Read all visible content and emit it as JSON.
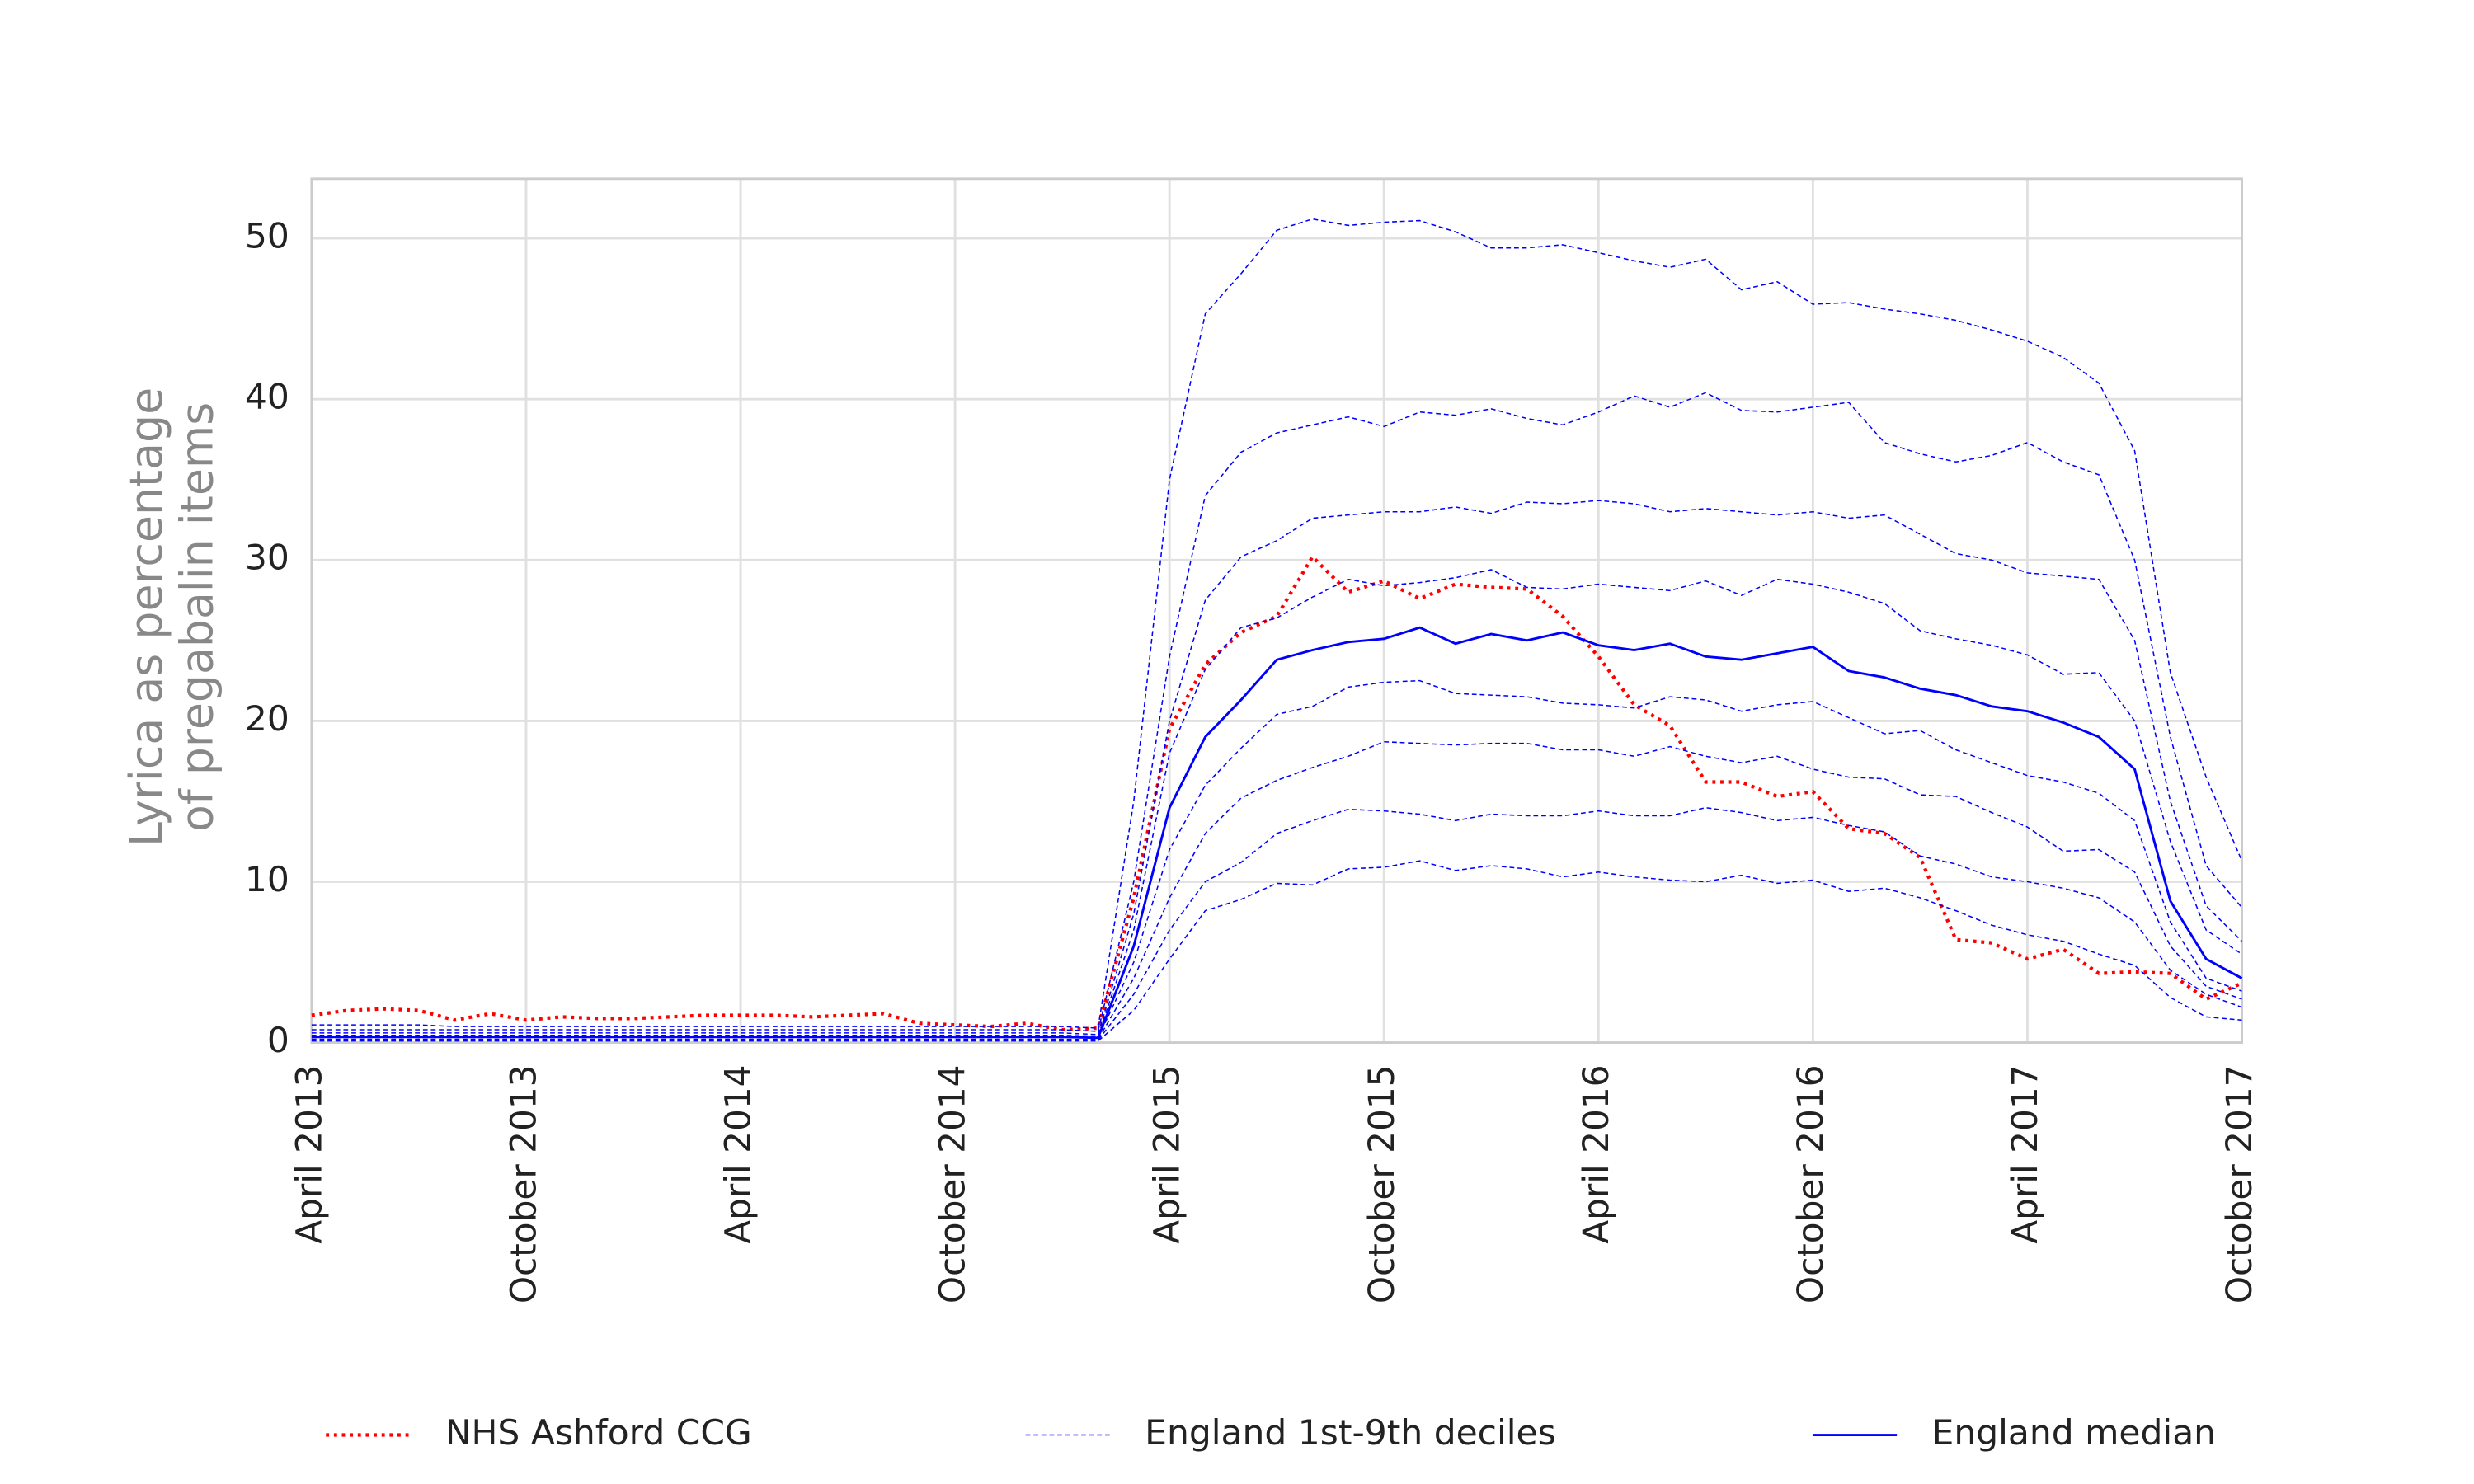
{
  "chart_data": {
    "type": "line",
    "y_label": [
      "Lyrica as percentage",
      "of pregabalin items"
    ],
    "x": [
      "2013-04",
      "2013-05",
      "2013-06",
      "2013-07",
      "2013-08",
      "2013-09",
      "2013-10",
      "2013-11",
      "2013-12",
      "2014-01",
      "2014-02",
      "2014-03",
      "2014-04",
      "2014-05",
      "2014-06",
      "2014-07",
      "2014-08",
      "2014-09",
      "2014-10",
      "2014-11",
      "2014-12",
      "2015-01",
      "2015-02",
      "2015-03",
      "2015-04",
      "2015-05",
      "2015-06",
      "2015-07",
      "2015-08",
      "2015-09",
      "2015-10",
      "2015-11",
      "2015-12",
      "2016-01",
      "2016-02",
      "2016-03",
      "2016-04",
      "2016-05",
      "2016-06",
      "2016-07",
      "2016-08",
      "2016-09",
      "2016-10",
      "2016-11",
      "2016-12",
      "2017-01",
      "2017-02",
      "2017-03",
      "2017-04",
      "2017-05",
      "2017-06",
      "2017-07",
      "2017-08",
      "2017-09",
      "2017-10"
    ],
    "xlim": [
      "2013-04",
      "2017-10"
    ],
    "xticks": [
      {
        "value": "2013-04",
        "label": "April 2013"
      },
      {
        "value": "2013-10",
        "label": "October 2013"
      },
      {
        "value": "2014-04",
        "label": "April 2014"
      },
      {
        "value": "2014-10",
        "label": "October 2014"
      },
      {
        "value": "2015-04",
        "label": "April 2015"
      },
      {
        "value": "2015-10",
        "label": "October 2015"
      },
      {
        "value": "2016-04",
        "label": "April 2016"
      },
      {
        "value": "2016-10",
        "label": "October 2016"
      },
      {
        "value": "2017-04",
        "label": "April 2017"
      },
      {
        "value": "2017-10",
        "label": "October 2017"
      }
    ],
    "ylim": [
      0,
      53.7
    ],
    "yticks": [
      0,
      10,
      20,
      30,
      40,
      50
    ],
    "grid": true,
    "series": [
      {
        "name": "NHS Ashford CCG",
        "color": "#ff0000",
        "linestyle": "dotted",
        "values": [
          1.7,
          2.0,
          2.1,
          2.0,
          1.4,
          1.8,
          1.4,
          1.6,
          1.5,
          1.5,
          1.6,
          1.7,
          1.7,
          1.7,
          1.6,
          1.7,
          1.8,
          1.2,
          1.1,
          1.0,
          1.2,
          0.8,
          0.9,
          9,
          19.5,
          23.5,
          25.5,
          26.5,
          30.2,
          28,
          28.7,
          27.6,
          28.5,
          28.3,
          28.2,
          26.5,
          24,
          21,
          19.7,
          16.2,
          16.2,
          15.3,
          15.6,
          13.3,
          13,
          11.5,
          6.4,
          6.2,
          5.2,
          5.8,
          4.3,
          4.4,
          4.3,
          2.7,
          3.7
        ]
      },
      {
        "name": "England 1st-9th deciles",
        "color": "#0000ff",
        "linestyle": "dashed",
        "values": [
          [
            0.1,
            0.1,
            0.1,
            0.1,
            0.1,
            0.1,
            0.1,
            0.1,
            0.1,
            0.1,
            0.1,
            0.1,
            0.1,
            0.1,
            0.1,
            0.1,
            0.1,
            0.1,
            0.1,
            0.1,
            0.1,
            0.1,
            0.1,
            2,
            5.2,
            8.2,
            8.9,
            9.9,
            9.8,
            10.8,
            10.9,
            11.3,
            10.7,
            11,
            10.8,
            10.3,
            10.6,
            10.3,
            10.1,
            10,
            10.4,
            9.9,
            10.1,
            9.4,
            9.6,
            9,
            8.2,
            7.3,
            6.7,
            6.3,
            5.5,
            4.8,
            2.8,
            1.6,
            1.4
          ],
          [
            0.15,
            0.15,
            0.15,
            0.15,
            0.15,
            0.15,
            0.15,
            0.15,
            0.15,
            0.15,
            0.15,
            0.15,
            0.15,
            0.15,
            0.15,
            0.15,
            0.15,
            0.15,
            0.15,
            0.15,
            0.15,
            0.15,
            0.15,
            3,
            7,
            10,
            11.2,
            13,
            13.8,
            14.5,
            14.4,
            14.2,
            13.8,
            14.2,
            14.1,
            14.1,
            14.4,
            14.1,
            14.1,
            14.6,
            14.3,
            13.8,
            14,
            13.5,
            13.1,
            11.6,
            11.1,
            10.3,
            10,
            9.6,
            9,
            7.5,
            4.5,
            3,
            2.2
          ],
          [
            0.2,
            0.2,
            0.2,
            0.2,
            0.2,
            0.2,
            0.2,
            0.2,
            0.2,
            0.2,
            0.2,
            0.2,
            0.2,
            0.2,
            0.2,
            0.2,
            0.2,
            0.2,
            0.2,
            0.2,
            0.2,
            0.2,
            0.2,
            4,
            9,
            13,
            15.2,
            16.3,
            17.1,
            17.8,
            18.7,
            18.6,
            18.5,
            18.6,
            18.6,
            18.2,
            18.2,
            17.8,
            18.4,
            17.8,
            17.4,
            17.8,
            17,
            16.5,
            16.4,
            15.4,
            15.3,
            14.3,
            13.4,
            11.9,
            12,
            10.6,
            6,
            3.5,
            2.7
          ],
          [
            0.3,
            0.3,
            0.3,
            0.3,
            0.3,
            0.3,
            0.3,
            0.3,
            0.3,
            0.3,
            0.3,
            0.3,
            0.3,
            0.3,
            0.3,
            0.3,
            0.3,
            0.3,
            0.3,
            0.3,
            0.3,
            0.3,
            0.3,
            5,
            12,
            16,
            18.3,
            20.4,
            20.9,
            22.1,
            22.4,
            22.5,
            21.7,
            21.6,
            21.5,
            21.1,
            21,
            20.8,
            21.5,
            21.3,
            20.6,
            21,
            21.2,
            20.2,
            19.2,
            19.4,
            18.2,
            17.4,
            16.6,
            16.2,
            15.5,
            13.8,
            7.5,
            4,
            3.2
          ],
          [
            0.35,
            0.35,
            0.35,
            0.35,
            0.35,
            0.35,
            0.35,
            0.35,
            0.35,
            0.35,
            0.35,
            0.35,
            0.35,
            0.35,
            0.35,
            0.35,
            0.35,
            0.35,
            0.35,
            0.35,
            0.35,
            0.35,
            0.3,
            6,
            14.6,
            19,
            21.3,
            23.8,
            24.4,
            24.9,
            25.1,
            25.8,
            24.8,
            25.4,
            25,
            25.5,
            24.7,
            24.4,
            24.8,
            24,
            23.8,
            24.2,
            24.6,
            23.1,
            22.7,
            22,
            21.6,
            20.9,
            20.6,
            19.9,
            19,
            17,
            8.8,
            5.2,
            4.0
          ],
          [
            0.45,
            0.45,
            0.45,
            0.45,
            0.45,
            0.45,
            0.45,
            0.45,
            0.45,
            0.45,
            0.45,
            0.45,
            0.45,
            0.45,
            0.45,
            0.45,
            0.45,
            0.45,
            0.45,
            0.45,
            0.45,
            0.45,
            0.4,
            7,
            18,
            23.2,
            25.8,
            26.4,
            27.7,
            28.8,
            28.4,
            28.6,
            28.9,
            29.4,
            28.3,
            28.2,
            28.5,
            28.3,
            28.1,
            28.7,
            27.8,
            28.8,
            28.5,
            28,
            27.3,
            25.6,
            25.1,
            24.7,
            24.1,
            22.9,
            23,
            20,
            12.5,
            7,
            5.5
          ],
          [
            0.6,
            0.6,
            0.6,
            0.6,
            0.6,
            0.6,
            0.6,
            0.6,
            0.6,
            0.6,
            0.6,
            0.6,
            0.6,
            0.6,
            0.6,
            0.6,
            0.6,
            0.6,
            0.6,
            0.6,
            0.6,
            0.6,
            0.5,
            8,
            20,
            27.5,
            30.2,
            31.2,
            32.6,
            32.8,
            33,
            33,
            33.3,
            32.9,
            33.6,
            33.5,
            33.7,
            33.5,
            33,
            33.2,
            33,
            32.8,
            33,
            32.6,
            32.8,
            31.6,
            30.4,
            30,
            29.2,
            29,
            28.8,
            25,
            15,
            8.5,
            6.3
          ],
          [
            0.8,
            0.8,
            0.8,
            0.8,
            0.8,
            0.8,
            0.8,
            0.8,
            0.8,
            0.8,
            0.8,
            0.8,
            0.8,
            0.8,
            0.8,
            0.8,
            0.8,
            0.8,
            0.8,
            0.8,
            0.8,
            0.8,
            0.7,
            10,
            24,
            34,
            36.7,
            37.9,
            38.4,
            38.9,
            38.3,
            39.2,
            39,
            39.4,
            38.8,
            38.4,
            39.2,
            40.2,
            39.5,
            40.4,
            39.3,
            39.2,
            39.5,
            39.8,
            37.3,
            36.6,
            36.1,
            36.5,
            37.3,
            36.1,
            35.3,
            30,
            19,
            11,
            8.4
          ],
          [
            1.1,
            1.1,
            1.1,
            1.1,
            1.0,
            1.0,
            1.0,
            1.0,
            1.0,
            1.0,
            1.0,
            1.0,
            1.0,
            1.0,
            1.0,
            1.0,
            1.0,
            1.0,
            1.0,
            1.0,
            1.0,
            1.0,
            0.9,
            15,
            35,
            45.3,
            47.8,
            50.5,
            51.2,
            50.8,
            51,
            51.1,
            50.4,
            49.4,
            49.4,
            49.6,
            49.1,
            48.6,
            48.2,
            48.7,
            46.8,
            47.3,
            45.9,
            46,
            45.6,
            45.3,
            44.9,
            44.3,
            43.6,
            42.6,
            41,
            36.8,
            23,
            16.5,
            11.3
          ]
        ]
      },
      {
        "name": "England median",
        "color": "#0000ff",
        "linestyle": "solid",
        "values": [
          0.35,
          0.35,
          0.35,
          0.35,
          0.35,
          0.35,
          0.35,
          0.35,
          0.35,
          0.35,
          0.35,
          0.35,
          0.35,
          0.35,
          0.35,
          0.35,
          0.35,
          0.35,
          0.35,
          0.35,
          0.35,
          0.35,
          0.3,
          6,
          14.6,
          19,
          21.3,
          23.8,
          24.4,
          24.9,
          25.1,
          25.8,
          24.8,
          25.4,
          25,
          25.5,
          24.7,
          24.4,
          24.8,
          24,
          23.8,
          24.2,
          24.6,
          23.1,
          22.7,
          22,
          21.6,
          20.9,
          20.6,
          19.9,
          19,
          17,
          8.8,
          5.2,
          4.0
        ]
      }
    ]
  }
}
